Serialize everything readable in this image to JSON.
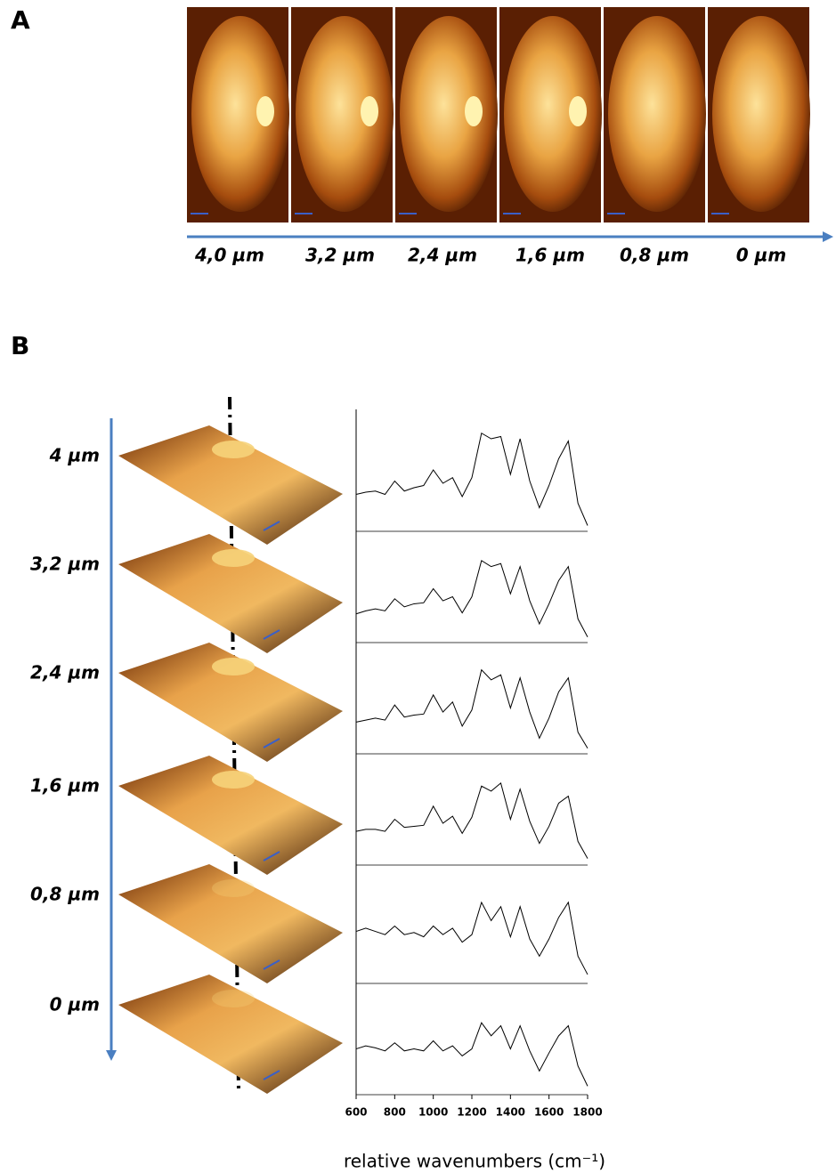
{
  "panel_a": {
    "label": "A",
    "depths": [
      "4,0 µm",
      "3,2 µm",
      "2,4 µm",
      "1,6 µm",
      "0,8 µm",
      "0 µm"
    ]
  },
  "panel_b": {
    "label": "B",
    "depths": [
      "4 µm",
      "3,2 µm",
      "2,4 µm",
      "1,6 µm",
      "0,8 µm",
      "0 µm"
    ]
  },
  "chart_data": {
    "type": "line",
    "x_label": "relative wavenumbers (cm⁻¹)",
    "x": [
      600,
      650,
      700,
      750,
      800,
      850,
      900,
      950,
      1000,
      1050,
      1100,
      1150,
      1200,
      1250,
      1300,
      1350,
      1400,
      1450,
      1500,
      1550,
      1600,
      1650,
      1700,
      1750,
      1800
    ],
    "xlim": [
      600,
      1800
    ],
    "xticks": [
      600,
      800,
      1000,
      1200,
      1400,
      1600,
      1800
    ],
    "ylim": [
      0,
      100
    ],
    "series": [
      {
        "color": "#000000",
        "values": [
          30,
          32,
          33,
          30,
          42,
          33,
          36,
          38,
          52,
          40,
          45,
          28,
          45,
          85,
          80,
          82,
          48,
          80,
          42,
          18,
          38,
          62,
          78,
          22,
          2
        ]
      },
      {
        "color": "#000000",
        "values": [
          25,
          28,
          30,
          28,
          40,
          32,
          35,
          36,
          50,
          38,
          42,
          26,
          42,
          78,
          72,
          75,
          45,
          72,
          38,
          15,
          35,
          58,
          72,
          20,
          2
        ]
      },
      {
        "color": "#000000",
        "values": [
          28,
          30,
          32,
          30,
          45,
          33,
          35,
          36,
          55,
          38,
          48,
          24,
          40,
          80,
          70,
          75,
          42,
          72,
          38,
          12,
          32,
          58,
          72,
          18,
          2
        ]
      },
      {
        "color": "#000000",
        "values": [
          30,
          32,
          32,
          30,
          42,
          34,
          35,
          36,
          55,
          38,
          45,
          28,
          44,
          75,
          70,
          78,
          42,
          72,
          40,
          18,
          35,
          58,
          65,
          20,
          3
        ]
      },
      {
        "color": "#000000",
        "values": [
          45,
          48,
          45,
          42,
          50,
          42,
          44,
          40,
          50,
          42,
          48,
          35,
          42,
          72,
          55,
          68,
          40,
          68,
          38,
          22,
          38,
          58,
          72,
          22,
          5
        ]
      },
      {
        "color": "#000000",
        "values": [
          42,
          45,
          43,
          40,
          48,
          40,
          42,
          40,
          50,
          40,
          45,
          35,
          42,
          68,
          55,
          65,
          42,
          65,
          40,
          20,
          38,
          55,
          65,
          25,
          5
        ]
      }
    ]
  }
}
